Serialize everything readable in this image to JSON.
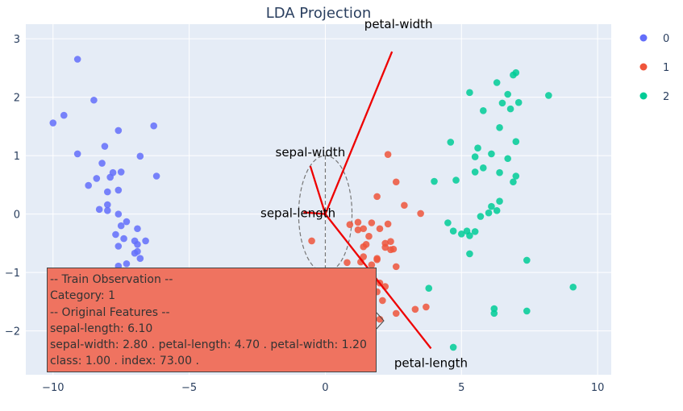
{
  "chart_data": {
    "type": "scatter",
    "title": "LDA Projection",
    "xlabel": "",
    "ylabel": "",
    "xlim": [
      -11,
      10.5
    ],
    "ylim": [
      -2.75,
      3.25
    ],
    "grid": true,
    "legend_position": "top-right",
    "x_ticks": [
      -10,
      -5,
      0,
      5,
      10
    ],
    "y_ticks": [
      -2,
      -1,
      0,
      1,
      2,
      3
    ],
    "series": [
      {
        "name": "0",
        "color": "#636efa",
        "x": [
          -9.1,
          -10,
          -9.6,
          -8.5,
          -9.1,
          -7.6,
          -6.3,
          -8.1,
          -6.8,
          -8.2,
          -7.8,
          -8.7,
          -7.5,
          -8.4,
          -7.9,
          -6.2,
          -8,
          -7.6,
          -8,
          -8.3,
          -8,
          -7.6,
          -7.3,
          -7.5,
          -6.9,
          -7.7,
          -7.4,
          -6.6,
          -7,
          -6.9,
          -7.6,
          -6.9,
          -7,
          -7.3,
          -6.8,
          -7.6
        ],
        "y": [
          2.65,
          1.56,
          1.69,
          1.95,
          1.03,
          1.43,
          1.51,
          1.16,
          0.99,
          0.87,
          0.71,
          0.49,
          0.72,
          0.61,
          0.63,
          0.65,
          0.38,
          0.41,
          0.16,
          0.08,
          0.06,
          0,
          -0.13,
          -0.2,
          -0.25,
          -0.35,
          -0.42,
          -0.46,
          -0.46,
          -0.52,
          -0.55,
          -0.64,
          -0.67,
          -0.85,
          -0.76,
          -0.89
        ]
      },
      {
        "name": "1",
        "color": "#ef553b",
        "x": [
          2.3,
          2.6,
          1.9,
          -0.5,
          1.2,
          1.4,
          1.7,
          2,
          2.3,
          2.2,
          2.4,
          1.5,
          1.6,
          1.9,
          2.5,
          2.9,
          3.5,
          0.9,
          1.2,
          1.4,
          1.4,
          1.9,
          2.2,
          2.4,
          1.3,
          1.7,
          2.6,
          0.8,
          1.1,
          1.5,
          1.8,
          2,
          2.2,
          1.9,
          1.6,
          1.1,
          1.4,
          2.1,
          3.7,
          3.3,
          2.6,
          2
        ],
        "y": [
          1.02,
          0.55,
          0.3,
          -0.46,
          -0.14,
          -0.25,
          -0.15,
          -0.25,
          -0.17,
          -0.5,
          -0.47,
          -0.52,
          -0.38,
          -0.78,
          -0.6,
          0.15,
          0.01,
          -0.18,
          -0.27,
          -0.56,
          -0.73,
          -0.76,
          -0.57,
          -0.61,
          -0.82,
          -0.87,
          -0.9,
          -0.83,
          -1.01,
          -1.07,
          -1.13,
          -1.18,
          -1.24,
          -1.33,
          -1.45,
          -1.58,
          -1.62,
          -1.48,
          -1.59,
          -1.63,
          -1.7,
          -1.8
        ]
      },
      {
        "name": "2",
        "color": "#00cc96",
        "x": [
          6.3,
          6.9,
          7,
          5.3,
          6.7,
          6.5,
          5.8,
          6.8,
          7.1,
          8.2,
          6.4,
          4.6,
          5.6,
          6.1,
          5.5,
          6.7,
          7,
          5.8,
          5.5,
          6.4,
          7,
          6.9,
          4.8,
          4,
          6.1,
          6.4,
          6.3,
          6,
          5.7,
          4.5,
          4.7,
          5,
          5.2,
          5.5,
          5.3,
          5.3,
          7.4,
          3.8,
          9.1,
          6.2,
          6.2,
          7.4,
          4.7
        ],
        "y": [
          2.25,
          2.38,
          2.42,
          2.08,
          2.05,
          1.9,
          1.77,
          1.8,
          1.91,
          2.03,
          1.48,
          1.23,
          1.13,
          1.03,
          0.98,
          0.95,
          1.24,
          0.79,
          0.72,
          0.71,
          0.65,
          0.55,
          0.58,
          0.56,
          0.13,
          0.22,
          0.06,
          0.02,
          -0.04,
          -0.15,
          -0.29,
          -0.34,
          -0.29,
          -0.3,
          -0.37,
          -0.68,
          -0.79,
          -1.27,
          -1.25,
          -1.62,
          -1.7,
          -1.66,
          -2.28
        ]
      }
    ],
    "loadings": [
      {
        "label": "petal-width",
        "x": 2.45,
        "y": 2.78
      },
      {
        "label": "sepal-width",
        "x": -0.55,
        "y": 0.82
      },
      {
        "label": "sepal-length",
        "x": -0.8,
        "y": 0.03
      },
      {
        "label": "petal-length",
        "x": 3.88,
        "y": -2.3
      }
    ],
    "ellipse": {
      "cx": 0,
      "cy": 0,
      "rx": 0.98,
      "ry": 1
    }
  },
  "legend": {
    "items": [
      "0",
      "1",
      "2"
    ]
  },
  "tooltip": {
    "lines": [
      "-- Train Observation --",
      "Category: 1",
      "-- Original Features --",
      "sepal-length: 6.10",
      "sepal-width: 2.80 . petal-length: 4.70 . petal-width: 1.20",
      "class: 1.00 . index: 73.00 ."
    ],
    "color": "#ef7360"
  }
}
